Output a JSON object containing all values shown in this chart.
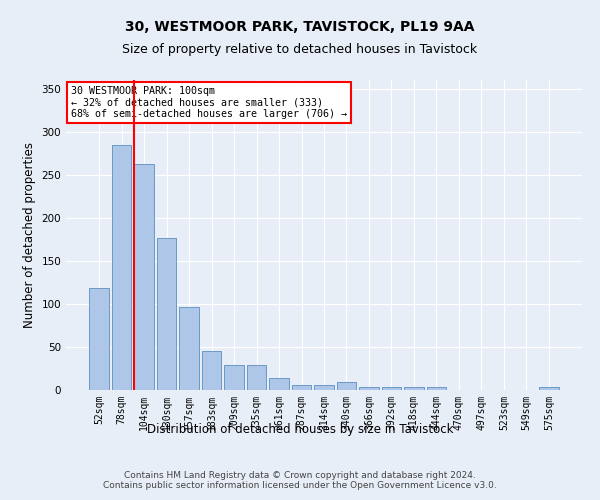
{
  "title1": "30, WESTMOOR PARK, TAVISTOCK, PL19 9AA",
  "title2": "Size of property relative to detached houses in Tavistock",
  "xlabel": "Distribution of detached houses by size in Tavistock",
  "ylabel": "Number of detached properties",
  "categories": [
    "52sqm",
    "78sqm",
    "104sqm",
    "130sqm",
    "157sqm",
    "183sqm",
    "209sqm",
    "235sqm",
    "261sqm",
    "287sqm",
    "314sqm",
    "340sqm",
    "366sqm",
    "392sqm",
    "418sqm",
    "444sqm",
    "470sqm",
    "497sqm",
    "523sqm",
    "549sqm",
    "575sqm"
  ],
  "values": [
    119,
    285,
    262,
    177,
    96,
    45,
    29,
    29,
    14,
    6,
    6,
    9,
    4,
    3,
    4,
    4,
    0,
    0,
    0,
    0,
    3
  ],
  "bar_color": "#aec6e8",
  "bar_edge_color": "#5a8fc0",
  "annotation_text": "30 WESTMOOR PARK: 100sqm\n← 32% of detached houses are smaller (333)\n68% of semi-detached houses are larger (706) →",
  "annotation_box_color": "white",
  "annotation_box_edge": "red",
  "red_line_index": 2,
  "ylim": [
    0,
    360
  ],
  "yticks": [
    0,
    50,
    100,
    150,
    200,
    250,
    300,
    350
  ],
  "footer": "Contains HM Land Registry data © Crown copyright and database right 2024.\nContains public sector information licensed under the Open Government Licence v3.0.",
  "background_color": "#e8eef7",
  "grid_color": "#ffffff",
  "title_fontsize": 10,
  "subtitle_fontsize": 9,
  "axis_label_fontsize": 8.5,
  "tick_fontsize": 7,
  "footer_fontsize": 6.5
}
